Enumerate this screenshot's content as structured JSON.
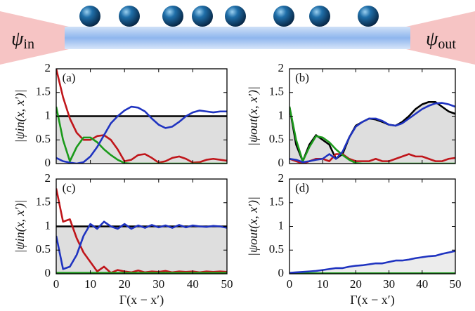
{
  "schematic": {
    "left_label": {
      "symbol": "ψ",
      "sub": "in"
    },
    "right_label": {
      "symbol": "ψ",
      "sub": "out"
    }
  },
  "chart_data": [
    {
      "type": "line",
      "annotation": "(a)",
      "ylabel": "|ψin(x, x′)|",
      "x": [
        0,
        2,
        4,
        6,
        8,
        10,
        12,
        14,
        16,
        18,
        20,
        22,
        24,
        26,
        28,
        30,
        32,
        34,
        36,
        38,
        40,
        42,
        44,
        46,
        48,
        50
      ],
      "xlim": [
        0,
        50
      ],
      "xticks": [
        0,
        10,
        20,
        30,
        40,
        50
      ],
      "xticklabels": false,
      "ylim": [
        0,
        2
      ],
      "yticks": [
        0,
        0.5,
        1,
        1.5,
        2
      ],
      "series": [
        {
          "color": "#000000",
          "fill": "#dedede",
          "values": [
            1,
            1,
            1,
            1,
            1,
            1,
            1,
            1,
            1,
            1,
            1,
            1,
            1,
            1,
            1,
            1,
            1,
            1,
            1,
            1,
            1,
            1,
            1,
            1,
            1,
            1
          ]
        },
        {
          "color": "#c0161b",
          "values": [
            2.0,
            1.4,
            0.95,
            0.65,
            0.5,
            0.5,
            0.58,
            0.6,
            0.5,
            0.3,
            0.05,
            0.08,
            0.18,
            0.2,
            0.12,
            0.02,
            0.05,
            0.12,
            0.15,
            0.1,
            0.02,
            0.03,
            0.08,
            0.1,
            0.08,
            0.06
          ]
        },
        {
          "color": "#1b9a1b",
          "values": [
            1.2,
            0.5,
            0.05,
            0.35,
            0.55,
            0.55,
            0.45,
            0.3,
            0.18,
            0.08,
            0.01,
            0,
            0,
            0,
            0,
            0,
            0,
            0,
            0,
            0,
            0,
            0,
            0,
            0,
            0,
            0
          ]
        },
        {
          "color": "#1f33c0",
          "values": [
            0.12,
            0.05,
            0.02,
            0.0,
            0.03,
            0.15,
            0.35,
            0.6,
            0.85,
            1.0,
            1.12,
            1.2,
            1.18,
            1.1,
            0.95,
            0.82,
            0.75,
            0.78,
            0.88,
            1.0,
            1.08,
            1.12,
            1.1,
            1.08,
            1.1,
            1.1
          ]
        }
      ]
    },
    {
      "type": "line",
      "annotation": "(b)",
      "ylabel": "|ψout(x, x′)|",
      "x": [
        0,
        2,
        4,
        6,
        8,
        10,
        12,
        14,
        16,
        18,
        20,
        22,
        24,
        26,
        28,
        30,
        32,
        34,
        36,
        38,
        40,
        42,
        44,
        46,
        48,
        50
      ],
      "xlim": [
        0,
        50
      ],
      "xticks": [
        0,
        10,
        20,
        30,
        40,
        50
      ],
      "xticklabels": false,
      "ylim": [
        0,
        2
      ],
      "yticks": [
        0,
        0.5,
        1,
        1.5,
        2
      ],
      "series": [
        {
          "color": "#000000",
          "fill": "#dedede",
          "values": [
            1.2,
            0.4,
            0.05,
            0.4,
            0.6,
            0.5,
            0.4,
            0.1,
            0.2,
            0.55,
            0.8,
            0.88,
            0.95,
            0.93,
            0.88,
            0.82,
            0.8,
            0.88,
            1.0,
            1.15,
            1.25,
            1.3,
            1.3,
            1.2,
            1.1,
            1.05
          ]
        },
        {
          "color": "#c0161b",
          "values": [
            0.1,
            0.05,
            0.0,
            0.05,
            0.1,
            0.1,
            0.05,
            0.2,
            0.2,
            0.1,
            0.05,
            0.05,
            0.05,
            0.1,
            0.05,
            0.05,
            0.1,
            0.15,
            0.2,
            0.15,
            0.15,
            0.1,
            0.05,
            0.05,
            0.1,
            0.12
          ]
        },
        {
          "color": "#1b9a1b",
          "values": [
            1.2,
            0.5,
            0.05,
            0.35,
            0.58,
            0.55,
            0.45,
            0.3,
            0.18,
            0.08,
            0.01,
            0,
            0,
            0,
            0,
            0,
            0,
            0,
            0,
            0,
            0,
            0,
            0,
            0,
            0,
            0
          ]
        },
        {
          "color": "#1f33c0",
          "values": [
            0.1,
            0.08,
            0.03,
            0.05,
            0.08,
            0.1,
            0.2,
            0.1,
            0.25,
            0.55,
            0.78,
            0.88,
            0.95,
            0.95,
            0.9,
            0.82,
            0.8,
            0.85,
            0.95,
            1.05,
            1.15,
            1.22,
            1.27,
            1.28,
            1.25,
            1.2
          ]
        }
      ]
    },
    {
      "type": "line",
      "annotation": "(c)",
      "ylabel": "|ψin(x, x′)|",
      "xlabel": "Γ(x − x′)",
      "x": [
        0,
        2,
        4,
        6,
        8,
        10,
        12,
        14,
        16,
        18,
        20,
        22,
        24,
        26,
        28,
        30,
        32,
        34,
        36,
        38,
        40,
        42,
        44,
        46,
        48,
        50
      ],
      "xlim": [
        0,
        50
      ],
      "xticks": [
        0,
        10,
        20,
        30,
        40,
        50
      ],
      "xticklabels": true,
      "ylim": [
        0,
        2
      ],
      "yticks": [
        0,
        0.5,
        1,
        1.5,
        2
      ],
      "series": [
        {
          "color": "#000000",
          "fill": "#dedede",
          "values": [
            1,
            1,
            1,
            1,
            1,
            1,
            1,
            1,
            1,
            1,
            1,
            1,
            1,
            1,
            1,
            1,
            1,
            1,
            1,
            1,
            1,
            1,
            1,
            1,
            1,
            1
          ]
        },
        {
          "color": "#c0161b",
          "values": [
            1.8,
            1.1,
            1.15,
            0.75,
            0.45,
            0.25,
            0.05,
            0.15,
            0.02,
            0.08,
            0.05,
            0.03,
            0.07,
            0.03,
            0.05,
            0.04,
            0.06,
            0.03,
            0.05,
            0.04,
            0.05,
            0.03,
            0.05,
            0.04,
            0.05,
            0.04
          ]
        },
        {
          "color": "#1b9a1b",
          "values": [
            0.02,
            0.02,
            0.02,
            0.02,
            0.02,
            0.02,
            0.02,
            0.02,
            0.02,
            0.02,
            0.02,
            0.02,
            0.02,
            0.02,
            0.02,
            0.02,
            0.02,
            0.02,
            0.02,
            0.02,
            0.02,
            0.02,
            0.02,
            0.02,
            0.02,
            0.02
          ]
        },
        {
          "color": "#1f33c0",
          "values": [
            0.8,
            0.1,
            0.15,
            0.4,
            0.8,
            1.05,
            0.95,
            1.1,
            1.0,
            0.95,
            1.05,
            0.95,
            1.02,
            0.97,
            1.03,
            0.98,
            1.02,
            0.97,
            1.03,
            0.98,
            1.02,
            1.0,
            0.99,
            1.01,
            1.0,
            0.97
          ]
        }
      ]
    },
    {
      "type": "line",
      "annotation": "(d)",
      "ylabel": "|ψout(x, x′)|",
      "xlabel": "Γ(x − x′)",
      "x": [
        0,
        2,
        4,
        6,
        8,
        10,
        12,
        14,
        16,
        18,
        20,
        22,
        24,
        26,
        28,
        30,
        32,
        34,
        36,
        38,
        40,
        42,
        44,
        46,
        48,
        50
      ],
      "xlim": [
        0,
        50
      ],
      "xticks": [
        0,
        10,
        20,
        30,
        40,
        50
      ],
      "xticklabels": true,
      "ylim": [
        0,
        2
      ],
      "yticks": [
        0,
        0.5,
        1,
        1.5,
        2
      ],
      "series": [
        {
          "color": "#1b9a1b",
          "values": [
            0.01,
            0.01,
            0.01,
            0.01,
            0.01,
            0.01,
            0.01,
            0.01,
            0.01,
            0.01,
            0.01,
            0.01,
            0.01,
            0.01,
            0.01,
            0.01,
            0.01,
            0.01,
            0.01,
            0.01,
            0.01,
            0.01,
            0.01,
            0.01,
            0.01,
            0.01
          ]
        },
        {
          "color": "#1f33c0",
          "fill": "#ececec",
          "values": [
            0.02,
            0.03,
            0.04,
            0.05,
            0.06,
            0.08,
            0.1,
            0.12,
            0.12,
            0.15,
            0.17,
            0.18,
            0.2,
            0.22,
            0.22,
            0.25,
            0.28,
            0.28,
            0.3,
            0.33,
            0.35,
            0.37,
            0.38,
            0.42,
            0.45,
            0.48
          ]
        }
      ]
    }
  ]
}
